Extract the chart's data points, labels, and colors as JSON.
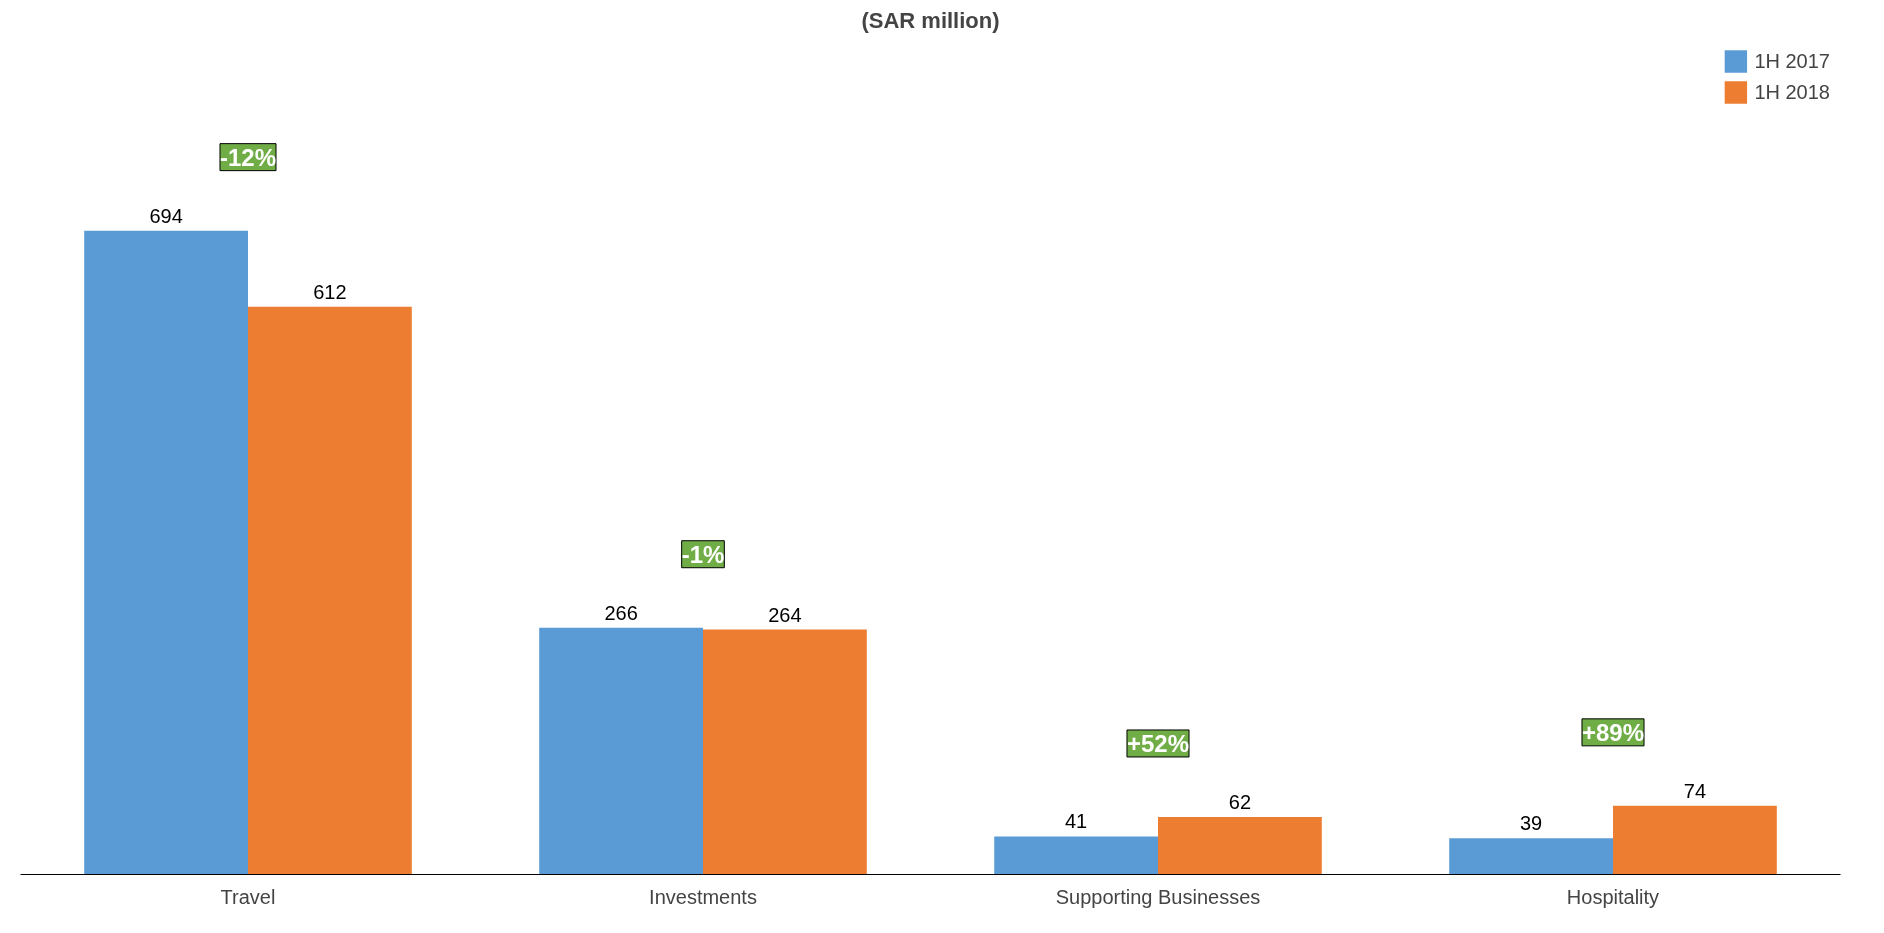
{
  "chart_data": {
    "type": "bar",
    "title": "(SAR million)",
    "categories": [
      "Travel",
      "Investments",
      "Supporting Businesses",
      "Hospitality"
    ],
    "series": [
      {
        "name": "1H 2017",
        "color": "#5b9bd5",
        "values": [
          694,
          266,
          41,
          39
        ]
      },
      {
        "name": "1H 2018",
        "color": "#ed7d31",
        "values": [
          612,
          264,
          62,
          74
        ]
      }
    ],
    "data_labels": true,
    "legend": "top right",
    "grid": false,
    "tick_labels": "x",
    "annotations": [
      "-12%",
      "-1%",
      "+52%",
      "+89%"
    ]
  }
}
